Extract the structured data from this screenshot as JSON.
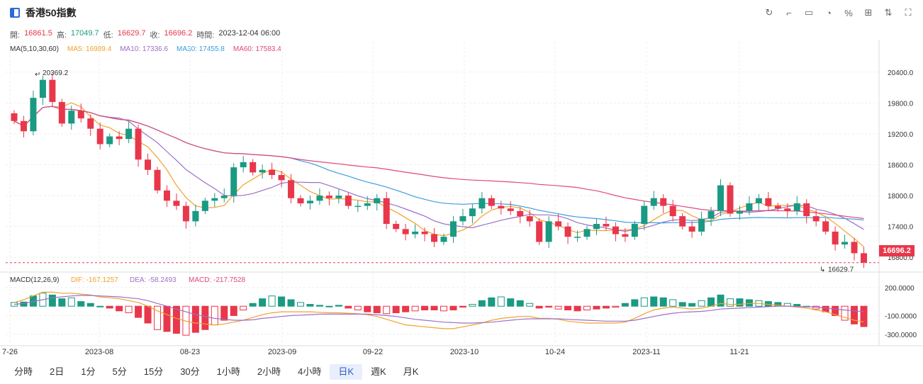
{
  "header": {
    "title": "香港50指數"
  },
  "toolbar": {
    "icons": [
      "refresh-icon",
      "draw-icon",
      "comment-icon",
      "pie-icon",
      "percent-icon",
      "grid-icon",
      "compare-icon",
      "fullscreen-icon"
    ]
  },
  "ohlc": {
    "open_label": "開:",
    "open": "16861.5",
    "high_label": "高:",
    "high": "17049.7",
    "low_label": "低:",
    "low": "16629.7",
    "close_label": "收:",
    "close": "16696.2",
    "time_label": "時間:",
    "time": "2023-12-04 06:00"
  },
  "ma": {
    "label": "MA(5,10,30,60)",
    "ma5": "MA5: 16989.4",
    "ma10": "MA10: 17336.6",
    "ma30": "MA30: 17455.8",
    "ma60": "MA60: 17583.4",
    "colors": {
      "ma5": "#f0a22e",
      "ma10": "#9d6fc7",
      "ma30": "#3c9ce0",
      "ma60": "#e0487b"
    }
  },
  "macd": {
    "label": "MACD(12,26,9)",
    "dif": "DIF: -167.1257",
    "dea": "DEA: -58.2493",
    "macd": "MACD: -217.7528"
  },
  "colors": {
    "up": "#1a9a82",
    "down": "#e8374b"
  },
  "price_tag": "16696.2",
  "markers": {
    "high": "20369.2",
    "low": "16629.7"
  },
  "chart_data": {
    "type": "candlestick",
    "price_axis": [
      "20400.0",
      "19800.0",
      "19200.0",
      "18600.0",
      "18000.0",
      "17400.0",
      "16800.0"
    ],
    "macd_axis": [
      "200.0000",
      "-100.0000",
      "-300.0000"
    ],
    "x_labels": [
      "7-26",
      "2023-08",
      "08-23",
      "2023-09",
      "09-22",
      "2023-10",
      "10-24",
      "2023-11",
      "11-21"
    ],
    "closes": [
      19450,
      19250,
      19900,
      20250,
      19820,
      19400,
      19650,
      19500,
      19300,
      19000,
      19150,
      19100,
      19300,
      18700,
      18500,
      18100,
      17900,
      17800,
      17500,
      17700,
      17900,
      17950,
      18000,
      18550,
      18650,
      18450,
      18500,
      18400,
      18300,
      17950,
      17850,
      17900,
      18000,
      17950,
      18000,
      17800,
      17800,
      17850,
      17950,
      17450,
      17350,
      17250,
      17300,
      17250,
      17100,
      17200,
      17500,
      17600,
      17750,
      17950,
      17800,
      17750,
      17700,
      17600,
      17500,
      17100,
      17500,
      17400,
      17200,
      17200,
      17350,
      17450,
      17400,
      17250,
      17200,
      17450,
      17800,
      17950,
      17800,
      17600,
      17400,
      17300,
      17550,
      17700,
      18200,
      17650,
      17700,
      17850,
      17950,
      17800,
      17750,
      17700,
      17850,
      17600,
      17500,
      17300,
      17050,
      17100,
      16880,
      16696
    ],
    "macd_hist": [
      40,
      45,
      110,
      140,
      120,
      80,
      90,
      50,
      30,
      0,
      -20,
      -50,
      -70,
      -120,
      -180,
      -250,
      -270,
      -290,
      -310,
      -280,
      -250,
      -200,
      -150,
      -100,
      -40,
      30,
      80,
      110,
      100,
      70,
      40,
      20,
      10,
      0,
      10,
      -20,
      -40,
      -60,
      -70,
      -80,
      -70,
      -60,
      -50,
      -40,
      -40,
      -50,
      -40,
      -10,
      20,
      60,
      90,
      100,
      80,
      60,
      30,
      -20,
      -10,
      -30,
      -40,
      -50,
      -40,
      -30,
      -20,
      -10,
      30,
      70,
      90,
      100,
      90,
      70,
      40,
      30,
      60,
      90,
      120,
      80,
      80,
      70,
      60,
      50,
      40,
      30,
      20,
      0,
      -30,
      -60,
      -100,
      -150,
      -190,
      -218
    ],
    "dif": [
      40,
      70,
      110,
      150,
      150,
      140,
      140,
      130,
      120,
      100,
      90,
      80,
      60,
      40,
      0,
      -50,
      -90,
      -130,
      -160,
      -180,
      -190,
      -200,
      -190,
      -170,
      -150,
      -120,
      -90,
      -70,
      -60,
      -60,
      -60,
      -60,
      -65,
      -70,
      -70,
      -75,
      -80,
      -90,
      -110,
      -140,
      -170,
      -200,
      -210,
      -220,
      -230,
      -240,
      -240,
      -220,
      -200,
      -180,
      -150,
      -130,
      -120,
      -110,
      -110,
      -130,
      -130,
      -140,
      -160,
      -170,
      -180,
      -180,
      -180,
      -180,
      -170,
      -130,
      -80,
      -40,
      -20,
      -10,
      -20,
      -30,
      -20,
      0,
      30,
      20,
      20,
      30,
      30,
      20,
      10,
      0,
      -10,
      -20,
      -40,
      -60,
      -90,
      -120,
      -150,
      -167
    ],
    "dea": [
      20,
      30,
      50,
      70,
      90,
      100,
      110,
      115,
      115,
      110,
      105,
      100,
      90,
      80,
      60,
      30,
      0,
      -30,
      -60,
      -90,
      -110,
      -130,
      -140,
      -150,
      -150,
      -145,
      -130,
      -120,
      -110,
      -100,
      -95,
      -90,
      -85,
      -85,
      -85,
      -85,
      -85,
      -85,
      -90,
      -100,
      -110,
      -125,
      -140,
      -150,
      -160,
      -170,
      -175,
      -180,
      -180,
      -175,
      -170,
      -160,
      -150,
      -140,
      -135,
      -135,
      -135,
      -135,
      -140,
      -145,
      -150,
      -155,
      -160,
      -160,
      -160,
      -150,
      -130,
      -110,
      -90,
      -75,
      -65,
      -60,
      -55,
      -45,
      -30,
      -25,
      -20,
      -15,
      -10,
      -5,
      0,
      0,
      -2,
      -5,
      -10,
      -20,
      -30,
      -40,
      -50,
      -58
    ]
  },
  "timeframes": {
    "items": [
      "分時",
      "2日",
      "1分",
      "5分",
      "15分",
      "30分",
      "1小時",
      "2小時",
      "4小時",
      "日K",
      "週K",
      "月K"
    ],
    "active": "日K"
  }
}
